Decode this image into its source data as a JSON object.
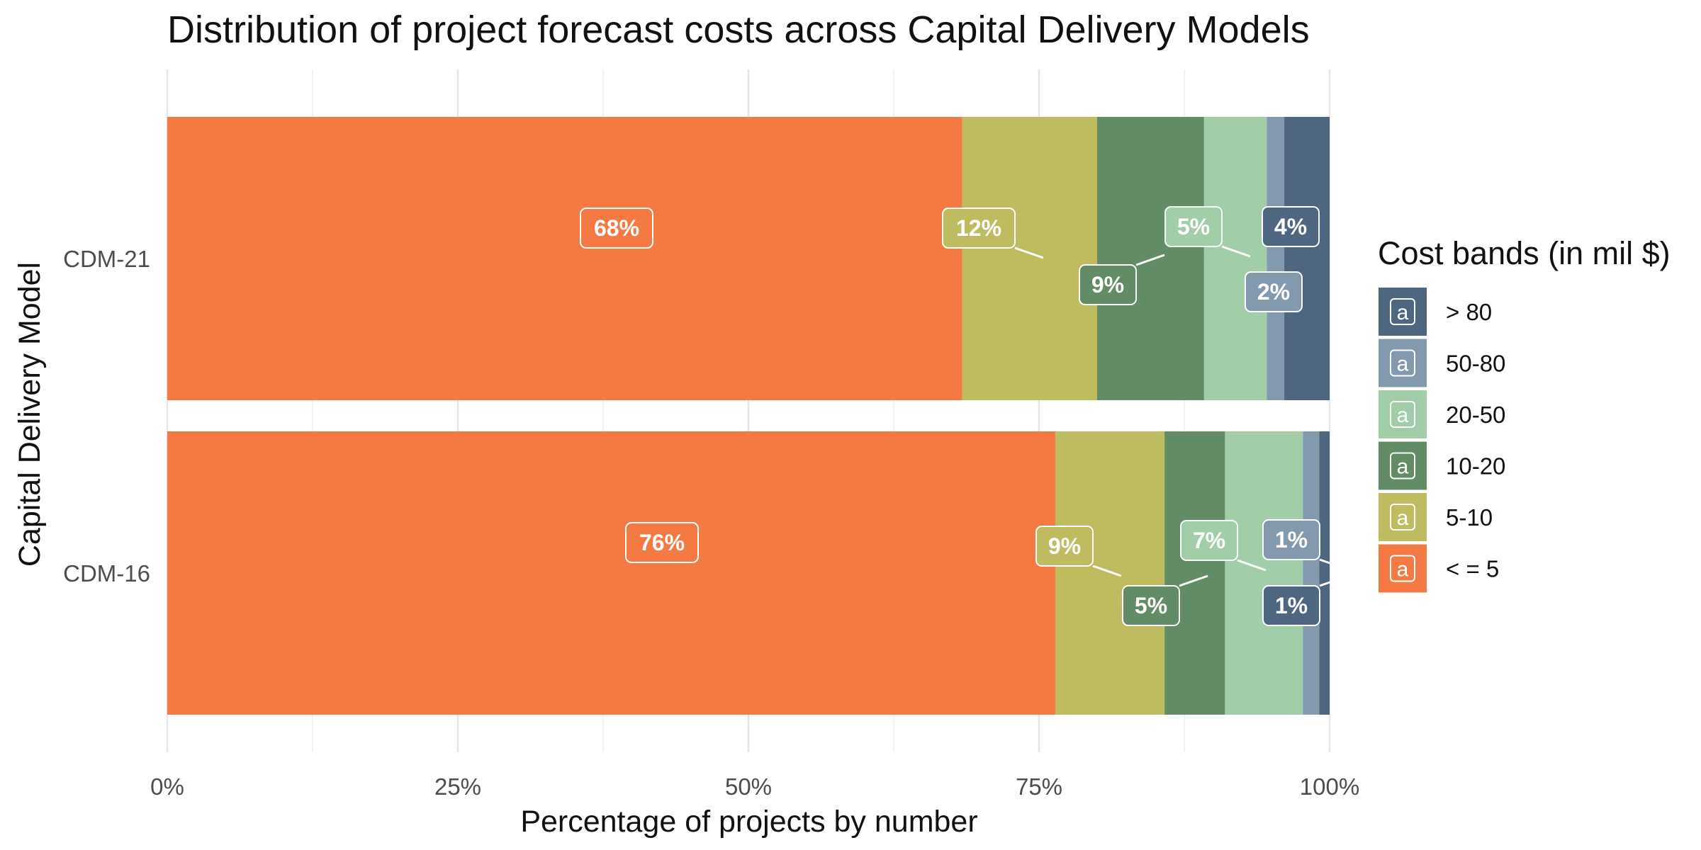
{
  "colors": {
    "background": "#ffffff",
    "grid_major": "#e6e6e6",
    "grid_minor": "#f2f2f2",
    "label_border": "#ffffff"
  },
  "chart_data": {
    "type": "bar",
    "orientation": "horizontal",
    "stacked": "percent",
    "title": "Distribution of project forecast costs across Capital Delivery Models",
    "xlabel": "Percentage of projects by number",
    "ylabel": "Capital Delivery Model",
    "xlim": [
      0,
      100
    ],
    "x_ticks": [
      "0%",
      "25%",
      "50%",
      "75%",
      "100%"
    ],
    "grid": true,
    "categories": [
      "CDM-21",
      "CDM-16"
    ],
    "series": [
      {
        "name": "< = 5",
        "color": "#F47A44",
        "values": [
          68.4,
          76.4
        ],
        "labels": [
          "68%",
          "76%"
        ]
      },
      {
        "name": "5-10",
        "color": "#BFBB60",
        "values": [
          11.6,
          9.4
        ],
        "labels": [
          "12%",
          "9%"
        ]
      },
      {
        "name": "10-20",
        "color": "#618C65",
        "values": [
          9.2,
          5.2
        ],
        "labels": [
          "9%",
          "5%"
        ]
      },
      {
        "name": "20-50",
        "color": "#A1CDA8",
        "values": [
          5.4,
          6.7
        ],
        "labels": [
          "5%",
          "7%"
        ]
      },
      {
        "name": "50-80",
        "color": "#8399AD",
        "values": [
          1.5,
          1.4
        ],
        "labels": [
          "2%",
          "1%"
        ]
      },
      {
        "name": "> 80",
        "color": "#4E6680",
        "values": [
          3.9,
          0.9
        ],
        "labels": [
          "4%",
          "1%"
        ]
      }
    ],
    "legend": {
      "title": "Cost bands (in mil $)",
      "position": "right",
      "key_glyph": "a",
      "order": [
        "> 80",
        "50-80",
        "20-50",
        "10-20",
        "5-10",
        "< = 5"
      ]
    }
  }
}
